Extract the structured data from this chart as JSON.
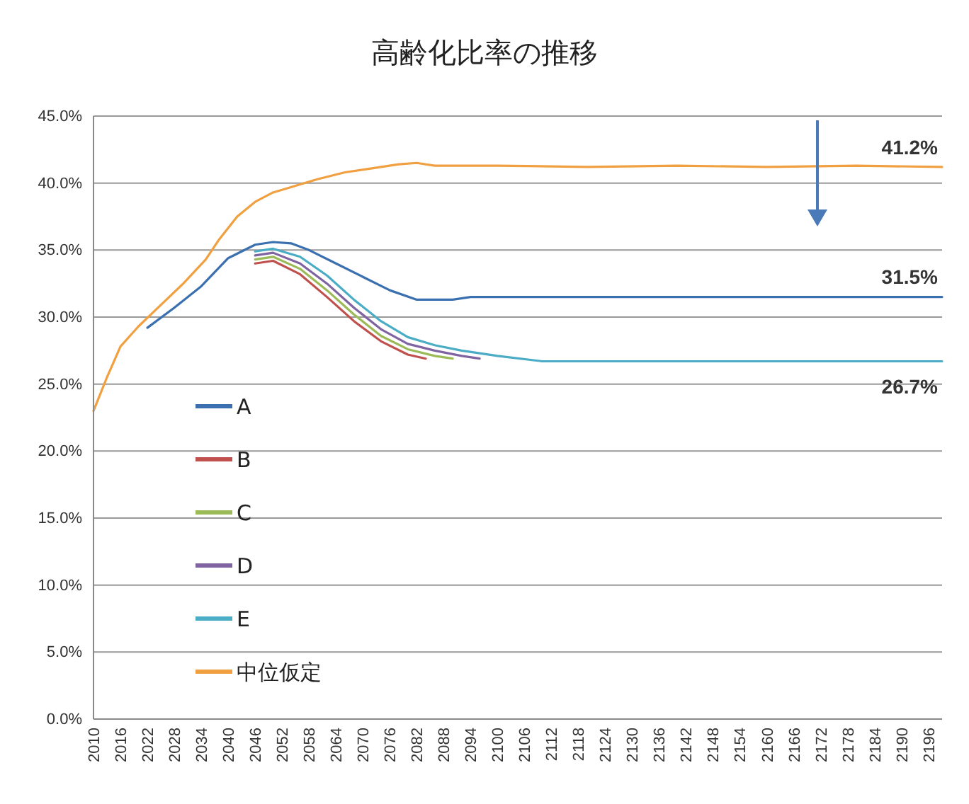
{
  "chart_data": {
    "type": "line",
    "title": "高齢化比率の推移",
    "xlim": [
      2010,
      2199
    ],
    "xticks": [
      2010,
      2016,
      2022,
      2028,
      2034,
      2040,
      2046,
      2052,
      2058,
      2064,
      2070,
      2076,
      2082,
      2088,
      2094,
      2100,
      2106,
      2112,
      2118,
      2124,
      2130,
      2136,
      2142,
      2148,
      2154,
      2160,
      2166,
      2172,
      2178,
      2184,
      2190,
      2196
    ],
    "ylim": [
      0,
      45
    ],
    "yticks": [
      {
        "value": 0,
        "label": "0.0%"
      },
      {
        "value": 5,
        "label": "5.0%"
      },
      {
        "value": 10,
        "label": "10.0%"
      },
      {
        "value": 15,
        "label": "15.0%"
      },
      {
        "value": 20,
        "label": "20.0%"
      },
      {
        "value": 25,
        "label": "25.0%"
      },
      {
        "value": 30,
        "label": "30.0%"
      },
      {
        "value": 35,
        "label": "35.0%"
      },
      {
        "value": 40,
        "label": "40.0%"
      },
      {
        "value": 45,
        "label": "45.0%"
      }
    ],
    "grid": "y",
    "legend": "bottom left",
    "marker": "none",
    "line_style": "solid",
    "series": [
      {
        "name": "A",
        "color": "#3a6fb0",
        "x": [
          2022,
          2028,
          2034,
          2040,
          2046,
          2050,
          2054,
          2058,
          2064,
          2070,
          2076,
          2082,
          2090,
          2094,
          2199
        ],
        "values": [
          29.2,
          30.7,
          32.3,
          34.4,
          35.4,
          35.6,
          35.5,
          35.0,
          34.0,
          33.0,
          32.0,
          31.3,
          31.3,
          31.5,
          31.5
        ]
      },
      {
        "name": "B",
        "color": "#c0504d",
        "x": [
          2046,
          2050,
          2056,
          2062,
          2068,
          2074,
          2080,
          2084
        ],
        "values": [
          34.0,
          34.2,
          33.2,
          31.5,
          29.7,
          28.2,
          27.2,
          26.9
        ]
      },
      {
        "name": "C",
        "color": "#9bbb59",
        "x": [
          2046,
          2050,
          2056,
          2062,
          2068,
          2074,
          2080,
          2086,
          2090
        ],
        "values": [
          34.3,
          34.5,
          33.6,
          32.0,
          30.2,
          28.6,
          27.6,
          27.1,
          26.9
        ]
      },
      {
        "name": "D",
        "color": "#8064a2",
        "x": [
          2046,
          2050,
          2056,
          2062,
          2068,
          2074,
          2080,
          2086,
          2092,
          2096
        ],
        "values": [
          34.6,
          34.8,
          34.0,
          32.5,
          30.7,
          29.1,
          28.0,
          27.5,
          27.1,
          26.9
        ]
      },
      {
        "name": "E",
        "color": "#4bacc6",
        "x": [
          2046,
          2050,
          2056,
          2062,
          2068,
          2074,
          2080,
          2086,
          2092,
          2100,
          2110,
          2199
        ],
        "values": [
          34.9,
          35.1,
          34.5,
          33.1,
          31.3,
          29.7,
          28.5,
          27.9,
          27.5,
          27.1,
          26.7,
          26.7
        ]
      },
      {
        "name": "中位仮定",
        "color": "#f0a040",
        "x": [
          2010,
          2013,
          2016,
          2020,
          2025,
          2030,
          2035,
          2038,
          2042,
          2046,
          2050,
          2055,
          2060,
          2066,
          2072,
          2078,
          2082,
          2086,
          2100,
          2120,
          2140,
          2160,
          2180,
          2199
        ],
        "values": [
          23.0,
          25.5,
          27.8,
          29.3,
          30.9,
          32.5,
          34.3,
          35.8,
          37.5,
          38.6,
          39.3,
          39.8,
          40.3,
          40.8,
          41.1,
          41.4,
          41.5,
          41.3,
          41.3,
          41.2,
          41.3,
          41.2,
          41.3,
          41.2
        ]
      }
    ],
    "annotations": [
      {
        "text": "41.2%",
        "y": 41.2
      },
      {
        "text": "31.5%",
        "y": 31.5
      },
      {
        "text": "26.7%",
        "y": 26.7
      }
    ]
  }
}
